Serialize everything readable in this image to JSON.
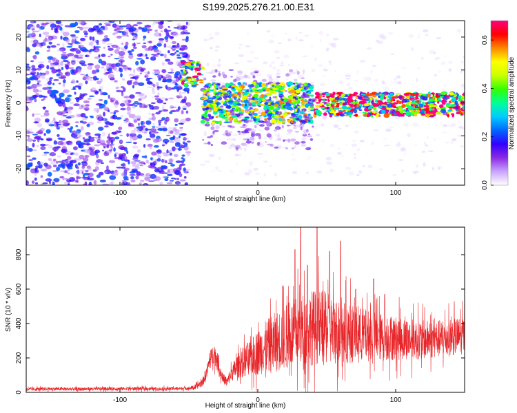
{
  "figure": {
    "title": "S199.2025.276.21.00.E31"
  },
  "chart_data": [
    {
      "type": "heatmap",
      "xlabel": "Height of straight line (km)",
      "ylabel": "Frequency (Hz)",
      "xlim": [
        -168,
        150
      ],
      "ylim": [
        -25,
        25
      ],
      "x_ticks": [
        -100,
        0,
        100
      ],
      "y_ticks": [
        -20,
        -10,
        0,
        10,
        20
      ],
      "colorbar": {
        "label": "Normalized spectral amplitude",
        "range": [
          0.0,
          0.68
        ],
        "ticks": [
          0.0,
          0.2,
          0.4,
          0.6
        ],
        "colors": [
          "#ffffff",
          "#c9a3ff",
          "#8a2be2",
          "#3300ff",
          "#0066ff",
          "#00ccff",
          "#00ff99",
          "#33ff00",
          "#ccff00",
          "#ffff00",
          "#ff8800",
          "#ff0000",
          "#ff0080"
        ]
      },
      "description_bands": [
        {
          "x_range": [
            -168,
            -50
          ],
          "freq_range": [
            -25,
            25
          ],
          "amplitude": 0.12
        },
        {
          "x_range": [
            -55,
            -40
          ],
          "freq_range": [
            5,
            13
          ],
          "amplitude": 0.45
        },
        {
          "x_range": [
            -40,
            40
          ],
          "freq_range": [
            -6,
            6
          ],
          "amplitude": 0.25
        },
        {
          "x_range": [
            40,
            150
          ],
          "freq_range": [
            -4,
            3
          ],
          "amplitude": 0.4
        }
      ]
    },
    {
      "type": "line",
      "xlabel": "Height of straight line (km)",
      "ylabel": "SNR (10 * v/v)",
      "xlim": [
        -168,
        150
      ],
      "ylim": [
        0,
        960
      ],
      "x_ticks": [
        -100,
        0,
        100
      ],
      "y_ticks": [
        0,
        200,
        400,
        600,
        800
      ],
      "series": [
        {
          "color": "#e8262a",
          "x": [
            -168,
            -150,
            -130,
            -110,
            -90,
            -70,
            -50,
            -45,
            -40,
            -37,
            -35,
            -32,
            -30,
            -28,
            -25,
            -22,
            -20,
            -15,
            -10,
            -5,
            0,
            5,
            10,
            15,
            20,
            25,
            30,
            35,
            40,
            45,
            50,
            55,
            60,
            65,
            70,
            75,
            80,
            90,
            100,
            110,
            120,
            130,
            140,
            150
          ],
          "y": [
            18,
            20,
            19,
            21,
            22,
            20,
            24,
            30,
            60,
            120,
            180,
            230,
            200,
            130,
            80,
            60,
            100,
            150,
            180,
            200,
            230,
            260,
            280,
            300,
            320,
            340,
            360,
            370,
            380,
            380,
            370,
            360,
            350,
            345,
            340,
            335,
            330,
            320,
            315,
            310,
            305,
            310,
            320,
            330
          ],
          "amplitude": [
            10,
            10,
            10,
            10,
            10,
            10,
            10,
            15,
            25,
            40,
            50,
            60,
            60,
            40,
            30,
            30,
            40,
            70,
            90,
            110,
            130,
            150,
            170,
            180,
            190,
            200,
            210,
            220,
            220,
            220,
            210,
            200,
            190,
            180,
            170,
            160,
            150,
            140,
            130,
            120,
            115,
            110,
            110,
            110
          ],
          "peaks": [
            {
              "x": 18,
              "y": 620
            },
            {
              "x": 27,
              "y": 830
            },
            {
              "x": 31,
              "y": 960
            },
            {
              "x": 36,
              "y": 740
            },
            {
              "x": 43,
              "y": 960
            },
            {
              "x": 52,
              "y": 820
            },
            {
              "x": 60,
              "y": 880
            },
            {
              "x": 71,
              "y": 600
            },
            {
              "x": 84,
              "y": 660
            },
            {
              "x": 92,
              "y": 570
            }
          ]
        }
      ]
    }
  ]
}
